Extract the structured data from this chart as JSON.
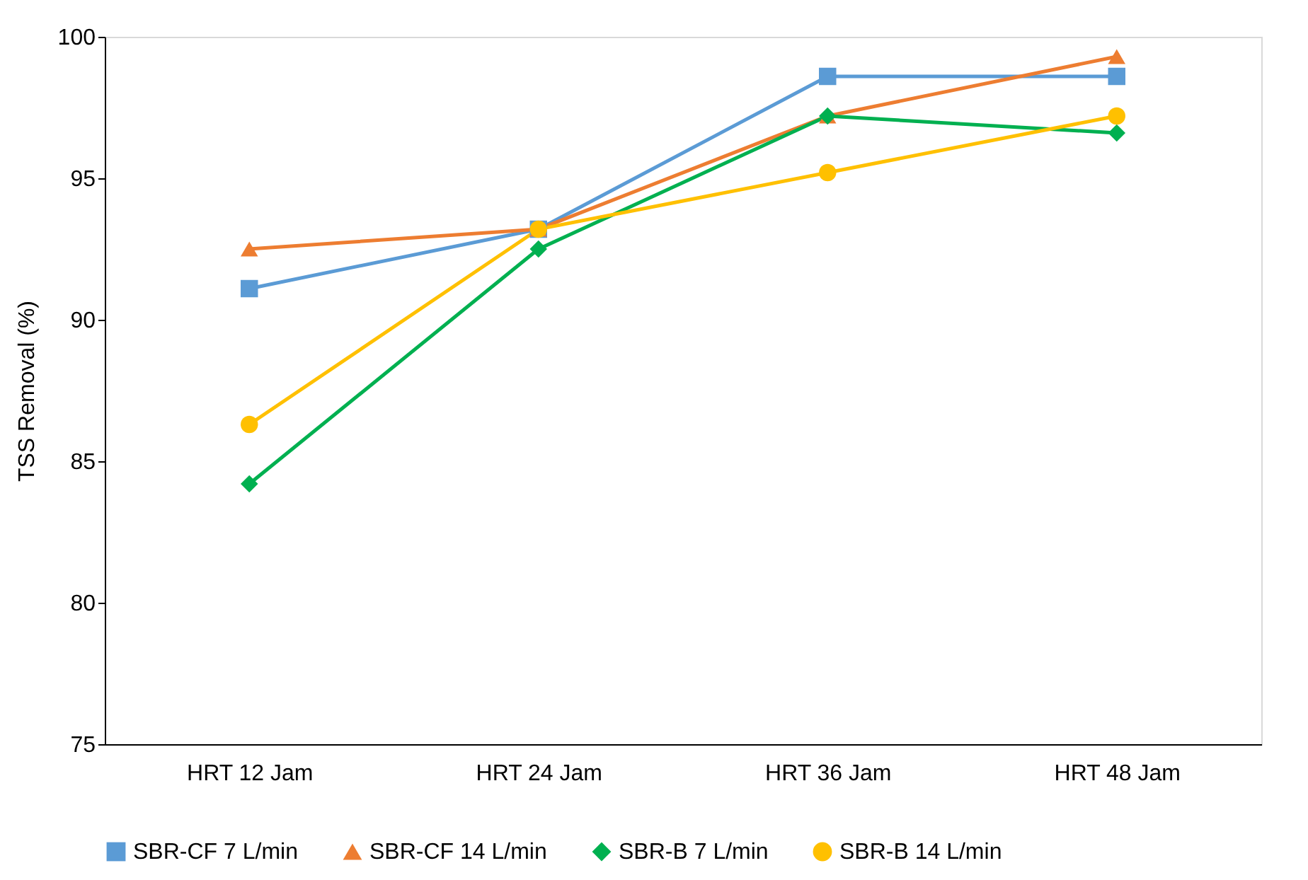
{
  "chart_data": {
    "type": "line",
    "ylabel": "TSS Removal (%)",
    "categories": [
      "HRT 12 Jam",
      "HRT 24 Jam",
      "HRT 36 Jam",
      "HRT 48 Jam"
    ],
    "series": [
      {
        "name": "SBR-CF 7 L/min",
        "color": "#5b9bd5",
        "marker": "square",
        "values": [
          91.1,
          93.2,
          98.6,
          98.6
        ]
      },
      {
        "name": "SBR-CF 14 L/min",
        "color": "#ed7d31",
        "marker": "triangle",
        "values": [
          92.5,
          93.2,
          97.2,
          99.3
        ]
      },
      {
        "name": "SBR-B 7 L/min",
        "color": "#00b050",
        "marker": "diamond",
        "values": [
          84.2,
          92.5,
          97.2,
          96.6
        ]
      },
      {
        "name": "SBR-B 14 L/min",
        "color": "#ffc000",
        "marker": "circle",
        "values": [
          86.3,
          93.2,
          95.2,
          97.2
        ]
      }
    ],
    "ylim": [
      75,
      100
    ],
    "yticks": [
      75,
      80,
      85,
      90,
      95,
      100
    ],
    "legend": "bottom"
  }
}
